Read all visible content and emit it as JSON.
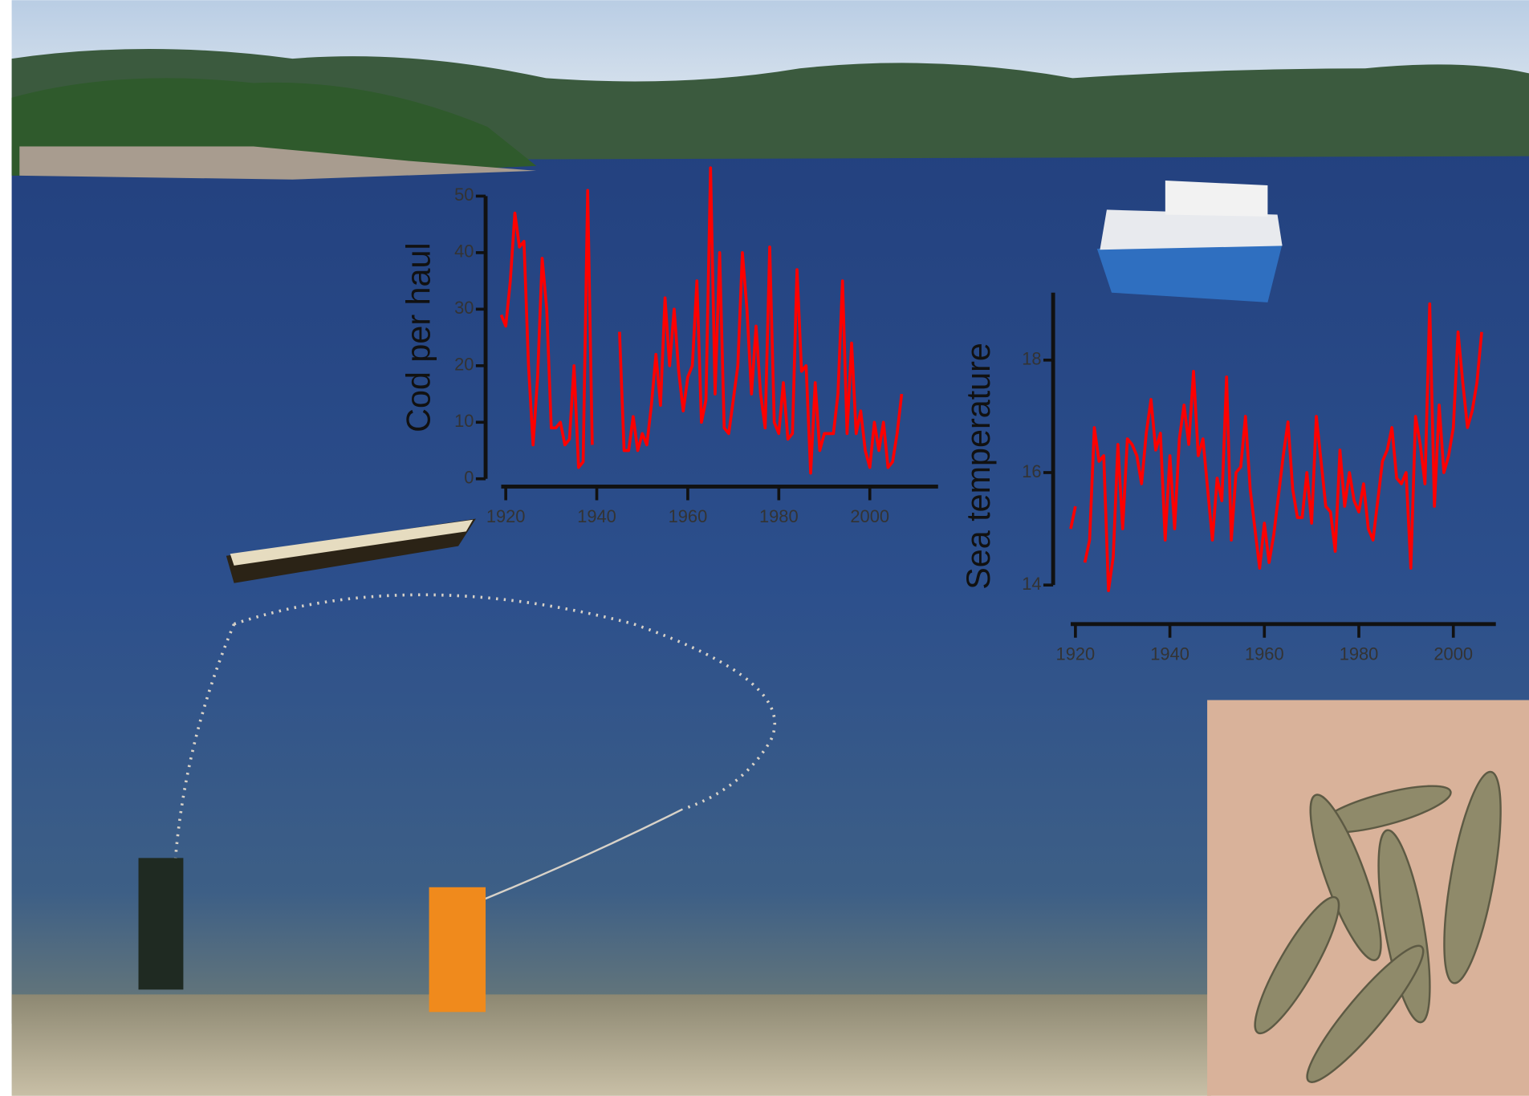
{
  "chart_data": [
    {
      "type": "line",
      "ylabel": "Cod per haul",
      "color": "#ff0000",
      "xlim": [
        1919,
        2015
      ],
      "ylim": [
        0,
        50
      ],
      "xticks": [
        1920,
        1940,
        1960,
        1980,
        2000
      ],
      "yticks": [
        0,
        10,
        20,
        30,
        40,
        50
      ],
      "x": [
        1919,
        1920,
        1921,
        1922,
        1923,
        1924,
        1925,
        1926,
        1927,
        1928,
        1929,
        1930,
        1931,
        1932,
        1933,
        1934,
        1935,
        1936,
        1937,
        1938,
        1939,
        1940,
        1941,
        1942,
        1943,
        1944,
        1945,
        1946,
        1947,
        1948,
        1949,
        1950,
        1951,
        1952,
        1953,
        1954,
        1955,
        1956,
        1957,
        1958,
        1959,
        1960,
        1961,
        1962,
        1963,
        1964,
        1965,
        1966,
        1967,
        1968,
        1969,
        1970,
        1971,
        1972,
        1973,
        1974,
        1975,
        1976,
        1977,
        1978,
        1979,
        1980,
        1981,
        1982,
        1983,
        1984,
        1985,
        1986,
        1987,
        1988,
        1989,
        1990,
        1991,
        1992,
        1993,
        1994,
        1995,
        1996,
        1997,
        1998,
        1999,
        2000,
        2001,
        2002,
        2003,
        2004,
        2005,
        2006,
        2007
      ],
      "values": [
        29,
        27,
        35,
        47,
        41,
        42,
        20,
        6,
        18,
        39,
        30,
        9,
        9,
        10,
        6,
        7,
        20,
        2,
        3,
        51,
        6,
        null,
        null,
        null,
        null,
        null,
        26,
        5,
        5,
        11,
        5,
        8,
        6,
        13,
        22,
        13,
        32,
        20,
        30,
        19,
        12,
        18,
        20,
        35,
        10,
        14,
        55,
        15,
        40,
        9,
        8,
        14,
        20,
        40,
        30,
        15,
        27,
        15,
        9,
        41,
        10,
        8,
        17,
        7,
        8,
        37,
        19,
        20,
        1,
        17,
        5,
        8,
        8,
        8,
        15,
        35,
        8,
        24,
        8,
        12,
        5,
        2,
        10,
        5,
        10,
        2,
        3,
        8,
        15
      ]
    },
    {
      "type": "line",
      "ylabel": "Sea temperature",
      "color": "#ff0000",
      "xlim": [
        1919,
        2009
      ],
      "ylim": [
        14,
        19.2
      ],
      "xticks": [
        1920,
        1940,
        1960,
        1980,
        2000
      ],
      "yticks": [
        14,
        16,
        18
      ],
      "x": [
        1919,
        1920,
        1921,
        1922,
        1923,
        1924,
        1925,
        1926,
        1927,
        1928,
        1929,
        1930,
        1931,
        1932,
        1933,
        1934,
        1935,
        1936,
        1937,
        1938,
        1939,
        1940,
        1941,
        1942,
        1943,
        1944,
        1945,
        1946,
        1947,
        1948,
        1949,
        1950,
        1951,
        1952,
        1953,
        1954,
        1955,
        1956,
        1957,
        1958,
        1959,
        1960,
        1961,
        1962,
        1963,
        1964,
        1965,
        1966,
        1967,
        1968,
        1969,
        1970,
        1971,
        1972,
        1973,
        1974,
        1975,
        1976,
        1977,
        1978,
        1979,
        1980,
        1981,
        1982,
        1983,
        1984,
        1985,
        1986,
        1987,
        1988,
        1989,
        1990,
        1991,
        1992,
        1993,
        1994,
        1995,
        1996,
        1997,
        1998,
        1999,
        2000,
        2001,
        2002,
        2003,
        2004,
        2005,
        2006
      ],
      "values": [
        15.0,
        15.4,
        null,
        14.4,
        14.8,
        16.8,
        16.2,
        16.3,
        13.9,
        14.5,
        16.5,
        15.0,
        16.6,
        16.5,
        16.3,
        15.8,
        16.7,
        17.3,
        16.4,
        16.7,
        14.8,
        16.3,
        15.0,
        16.6,
        17.2,
        16.5,
        17.8,
        16.3,
        16.6,
        15.7,
        14.8,
        15.9,
        15.5,
        17.7,
        14.8,
        16.0,
        16.1,
        17.0,
        15.7,
        15.0,
        14.3,
        15.1,
        14.4,
        14.9,
        15.6,
        16.3,
        16.9,
        15.7,
        15.2,
        15.2,
        16.0,
        15.1,
        17.0,
        16.2,
        15.4,
        15.3,
        14.6,
        16.4,
        15.4,
        16.0,
        15.5,
        15.3,
        15.8,
        15.0,
        14.8,
        15.5,
        16.2,
        16.4,
        16.8,
        15.9,
        15.8,
        16.0,
        14.3,
        17.0,
        16.5,
        15.8,
        19.0,
        15.4,
        17.2,
        16.0,
        16.3,
        16.8,
        18.5,
        17.6,
        16.8,
        17.1,
        17.6,
        18.5
      ]
    }
  ]
}
